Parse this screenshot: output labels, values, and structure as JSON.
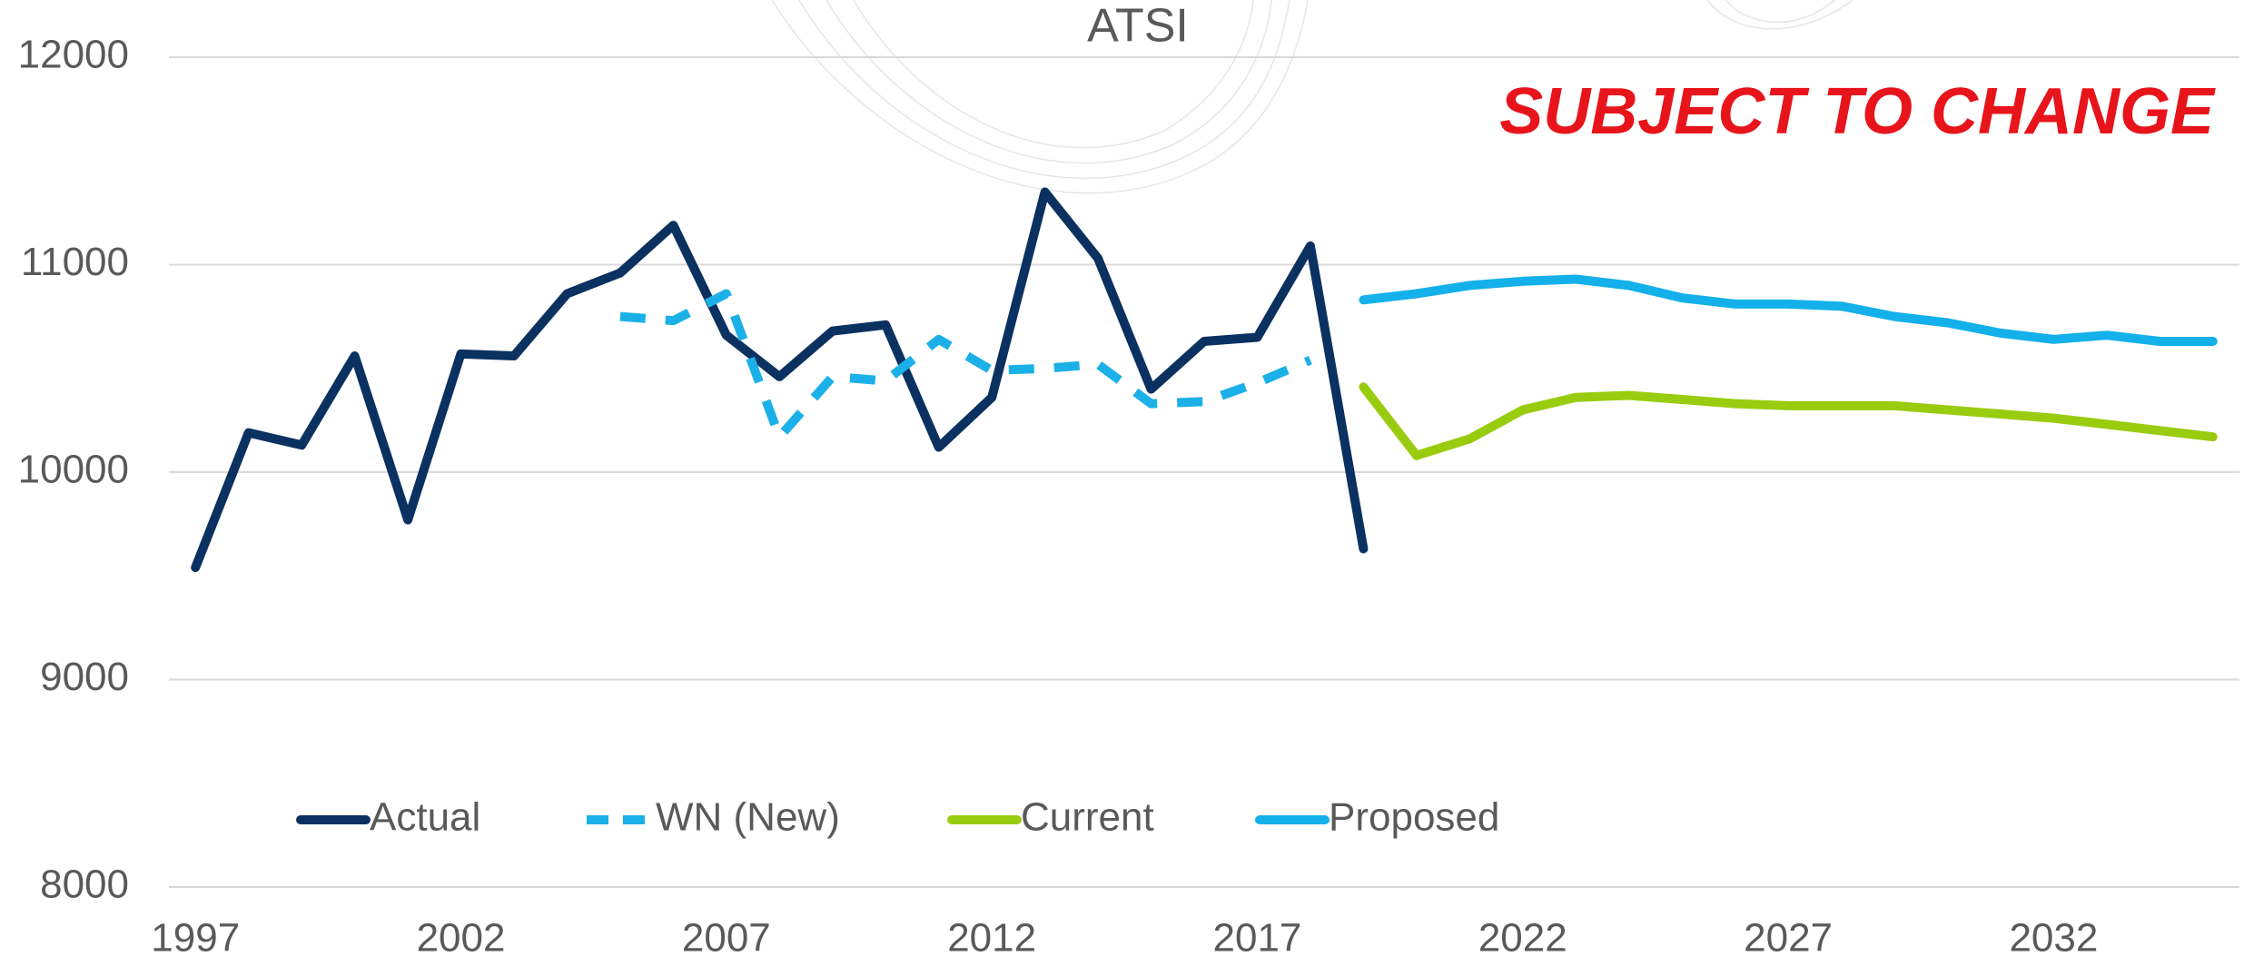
{
  "chart_data": {
    "type": "line",
    "title": "ATSI",
    "annotation": "SUBJECT TO CHANGE",
    "annotation_color": "#e8141b",
    "x": [
      1997,
      1998,
      1999,
      2000,
      2001,
      2002,
      2003,
      2004,
      2005,
      2006,
      2007,
      2008,
      2009,
      2010,
      2011,
      2012,
      2013,
      2014,
      2015,
      2016,
      2017,
      2018,
      2019,
      2020,
      2021,
      2022,
      2023,
      2024,
      2025,
      2026,
      2027,
      2028,
      2029,
      2030,
      2031,
      2032,
      2033,
      2034,
      2035
    ],
    "xlim": [
      1996.5,
      2035.5
    ],
    "xticks": [
      1997,
      2002,
      2007,
      2012,
      2017,
      2022,
      2027,
      2032
    ],
    "ylim": [
      8000,
      12000
    ],
    "yticks": [
      8000,
      9000,
      10000,
      11000,
      12000
    ],
    "grid": true,
    "series": [
      {
        "name": "Actual",
        "color": "#0b3161",
        "dashed": false,
        "values": [
          9540,
          10190,
          10130,
          10560,
          9770,
          10570,
          10560,
          10860,
          10960,
          11190,
          10660,
          10460,
          10680,
          10710,
          10120,
          10360,
          11350,
          11030,
          10400,
          10630,
          10650,
          11090,
          9630,
          null,
          null,
          null,
          null,
          null,
          null,
          null,
          null,
          null,
          null,
          null,
          null,
          null,
          null,
          null,
          null
        ]
      },
      {
        "name": "WN (New)",
        "color": "#1cb0e8",
        "dashed": true,
        "values": [
          null,
          null,
          null,
          null,
          null,
          null,
          null,
          null,
          10750,
          10730,
          10860,
          10170,
          10460,
          10440,
          10640,
          10490,
          10500,
          10520,
          10330,
          10340,
          10430,
          10540,
          null,
          null,
          null,
          null,
          null,
          null,
          null,
          null,
          null,
          null,
          null,
          null,
          null,
          null,
          null,
          null,
          null
        ]
      },
      {
        "name": "Current",
        "color": "#99cc0f",
        "dashed": false,
        "values": [
          null,
          null,
          null,
          null,
          null,
          null,
          null,
          null,
          null,
          null,
          null,
          null,
          null,
          null,
          null,
          null,
          null,
          null,
          null,
          null,
          null,
          null,
          10410,
          10080,
          10160,
          10300,
          10360,
          10370,
          10350,
          10330,
          10320,
          10320,
          10320,
          10300,
          10280,
          10260,
          10230,
          10200,
          10170
        ]
      },
      {
        "name": "Proposed",
        "color": "#13b0ea",
        "dashed": false,
        "values": [
          null,
          null,
          null,
          null,
          null,
          null,
          null,
          null,
          null,
          null,
          null,
          null,
          null,
          null,
          null,
          null,
          null,
          null,
          null,
          null,
          null,
          null,
          10830,
          10860,
          10900,
          10920,
          10930,
          10900,
          10840,
          10810,
          10810,
          10800,
          10750,
          10720,
          10670,
          10640,
          10660,
          10630,
          10630
        ]
      }
    ]
  }
}
